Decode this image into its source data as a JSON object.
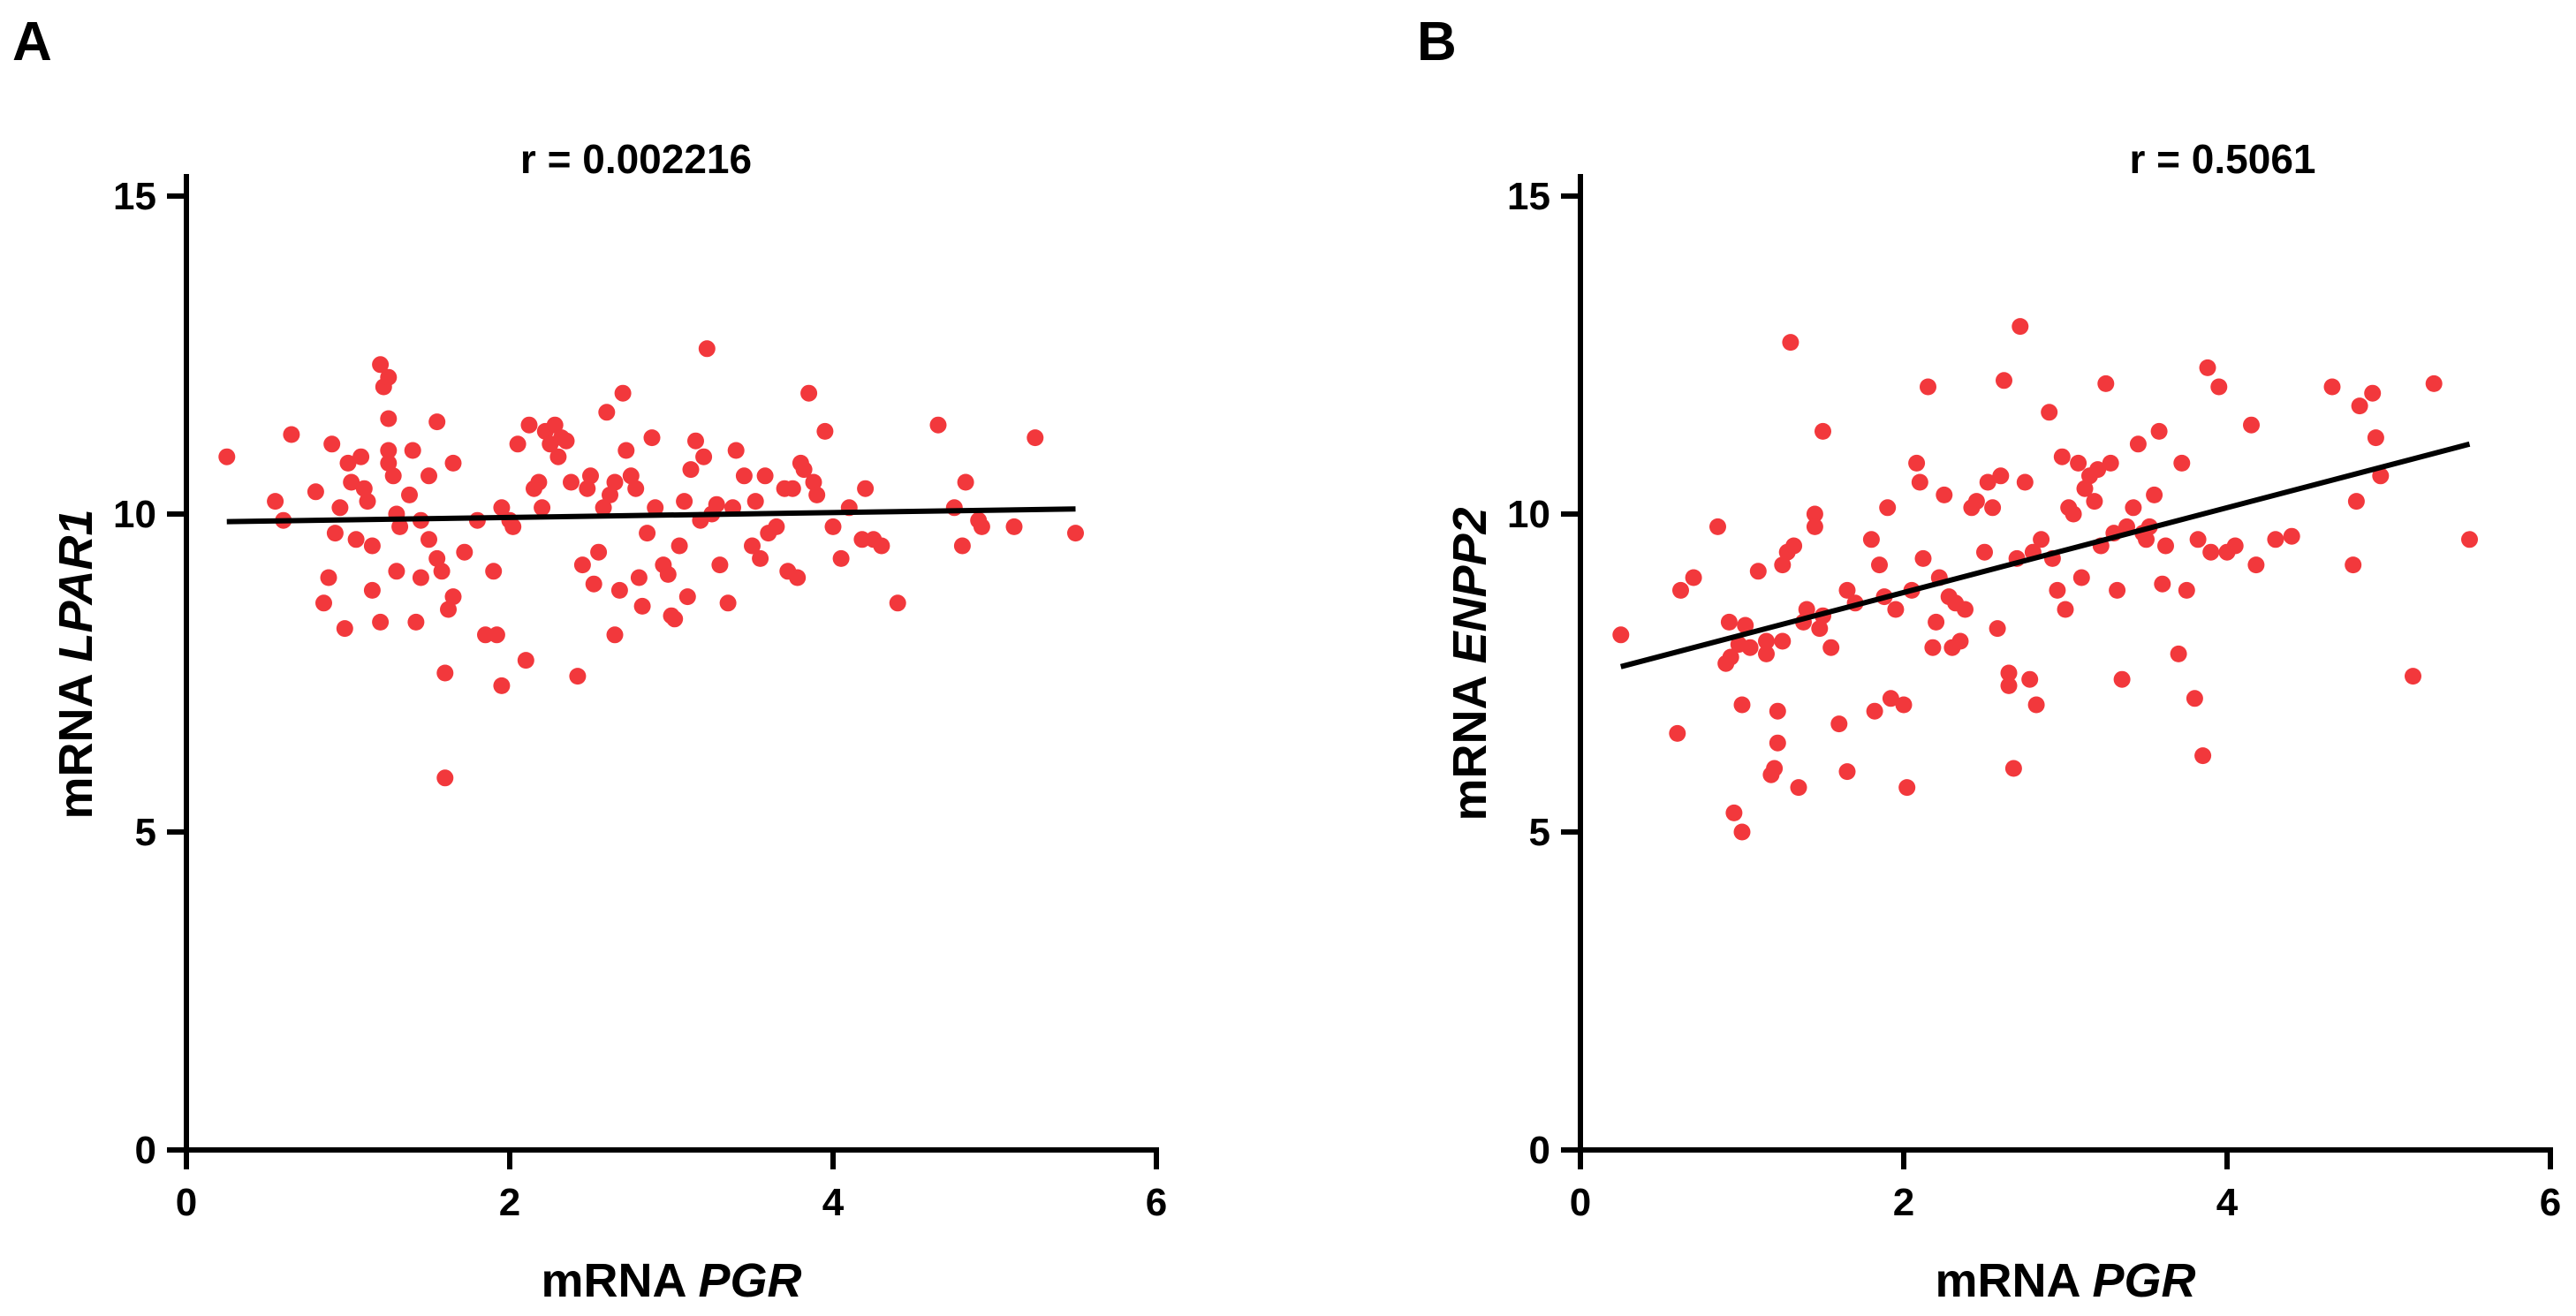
{
  "colors": {
    "point": "#f2383c",
    "axis": "#000000",
    "fit": "#000000"
  },
  "chart_data": [
    {
      "type": "scatter",
      "panel_label": "A",
      "title": "r = 0.002216",
      "xlabel_prefix": "mRNA ",
      "xlabel_gene": "PGR",
      "ylabel_prefix": "mRNA ",
      "ylabel_gene": "LPAR1",
      "xlim": [
        0,
        6
      ],
      "ylim": [
        0,
        15
      ],
      "xticks": [
        0,
        2,
        4,
        6
      ],
      "yticks": [
        0,
        5,
        10,
        15
      ],
      "grid": false,
      "legend": "none",
      "fit_line": {
        "x": [
          0.25,
          5.5
        ],
        "y": [
          9.88,
          10.08
        ]
      },
      "points": [
        [
          0.25,
          10.9
        ],
        [
          0.55,
          10.2
        ],
        [
          0.6,
          9.9
        ],
        [
          0.65,
          11.25
        ],
        [
          0.8,
          10.35
        ],
        [
          0.85,
          8.6
        ],
        [
          0.88,
          9.0
        ],
        [
          0.9,
          11.1
        ],
        [
          0.92,
          9.7
        ],
        [
          0.95,
          10.1
        ],
        [
          0.98,
          8.2
        ],
        [
          1.0,
          10.8
        ],
        [
          1.02,
          10.5
        ],
        [
          1.05,
          9.6
        ],
        [
          1.08,
          10.9
        ],
        [
          1.1,
          10.4
        ],
        [
          1.12,
          10.2
        ],
        [
          1.15,
          8.8
        ],
        [
          1.15,
          9.5
        ],
        [
          1.2,
          8.3
        ],
        [
          1.2,
          12.35
        ],
        [
          1.22,
          12.0
        ],
        [
          1.25,
          12.15
        ],
        [
          1.25,
          11.5
        ],
        [
          1.25,
          11.0
        ],
        [
          1.25,
          10.8
        ],
        [
          1.28,
          10.6
        ],
        [
          1.3,
          10.0
        ],
        [
          1.3,
          9.1
        ],
        [
          1.32,
          9.8
        ],
        [
          1.38,
          10.3
        ],
        [
          1.4,
          11.0
        ],
        [
          1.42,
          8.3
        ],
        [
          1.45,
          9.0
        ],
        [
          1.45,
          9.9
        ],
        [
          1.5,
          9.6
        ],
        [
          1.5,
          10.6
        ],
        [
          1.55,
          11.45
        ],
        [
          1.55,
          9.3
        ],
        [
          1.58,
          9.1
        ],
        [
          1.6,
          7.5
        ],
        [
          1.6,
          5.85
        ],
        [
          1.62,
          8.5
        ],
        [
          1.65,
          8.7
        ],
        [
          1.65,
          10.8
        ],
        [
          1.72,
          9.4
        ],
        [
          1.8,
          9.9
        ],
        [
          1.85,
          8.1
        ],
        [
          1.9,
          9.1
        ],
        [
          1.92,
          8.1
        ],
        [
          1.95,
          7.3
        ],
        [
          1.95,
          10.1
        ],
        [
          2.0,
          9.9
        ],
        [
          2.02,
          9.8
        ],
        [
          2.05,
          11.1
        ],
        [
          2.1,
          7.7
        ],
        [
          2.12,
          11.4
        ],
        [
          2.15,
          10.4
        ],
        [
          2.18,
          10.5
        ],
        [
          2.2,
          10.1
        ],
        [
          2.22,
          11.3
        ],
        [
          2.25,
          11.1
        ],
        [
          2.28,
          11.4
        ],
        [
          2.3,
          10.9
        ],
        [
          2.32,
          11.2
        ],
        [
          2.35,
          11.15
        ],
        [
          2.38,
          10.5
        ],
        [
          2.42,
          7.45
        ],
        [
          2.45,
          9.2
        ],
        [
          2.48,
          10.4
        ],
        [
          2.5,
          10.6
        ],
        [
          2.52,
          8.9
        ],
        [
          2.55,
          9.4
        ],
        [
          2.58,
          10.1
        ],
        [
          2.6,
          11.6
        ],
        [
          2.62,
          10.3
        ],
        [
          2.65,
          10.5
        ],
        [
          2.65,
          8.1
        ],
        [
          2.68,
          8.8
        ],
        [
          2.7,
          11.9
        ],
        [
          2.72,
          11.0
        ],
        [
          2.75,
          10.6
        ],
        [
          2.78,
          10.4
        ],
        [
          2.8,
          9.0
        ],
        [
          2.82,
          8.55
        ],
        [
          2.85,
          9.7
        ],
        [
          2.88,
          11.2
        ],
        [
          2.9,
          10.1
        ],
        [
          2.95,
          9.2
        ],
        [
          2.98,
          9.05
        ],
        [
          3.0,
          8.4
        ],
        [
          3.02,
          8.35
        ],
        [
          3.05,
          9.5
        ],
        [
          3.08,
          10.2
        ],
        [
          3.1,
          8.7
        ],
        [
          3.12,
          10.7
        ],
        [
          3.15,
          11.15
        ],
        [
          3.18,
          9.9
        ],
        [
          3.2,
          10.9
        ],
        [
          3.22,
          12.6
        ],
        [
          3.25,
          10.0
        ],
        [
          3.28,
          10.15
        ],
        [
          3.3,
          9.2
        ],
        [
          3.35,
          8.6
        ],
        [
          3.38,
          10.1
        ],
        [
          3.4,
          11.0
        ],
        [
          3.45,
          10.6
        ],
        [
          3.5,
          9.5
        ],
        [
          3.52,
          10.2
        ],
        [
          3.55,
          9.3
        ],
        [
          3.58,
          10.6
        ],
        [
          3.6,
          9.7
        ],
        [
          3.65,
          9.8
        ],
        [
          3.7,
          10.4
        ],
        [
          3.72,
          9.1
        ],
        [
          3.75,
          10.4
        ],
        [
          3.78,
          9.0
        ],
        [
          3.8,
          10.8
        ],
        [
          3.82,
          10.7
        ],
        [
          3.85,
          11.9
        ],
        [
          3.88,
          10.5
        ],
        [
          3.9,
          10.3
        ],
        [
          3.95,
          11.3
        ],
        [
          4.0,
          9.8
        ],
        [
          4.05,
          9.3
        ],
        [
          4.1,
          10.1
        ],
        [
          4.18,
          9.6
        ],
        [
          4.2,
          10.4
        ],
        [
          4.25,
          9.6
        ],
        [
          4.3,
          9.5
        ],
        [
          4.4,
          8.6
        ],
        [
          4.65,
          11.4
        ],
        [
          4.75,
          10.1
        ],
        [
          4.8,
          9.5
        ],
        [
          4.82,
          10.5
        ],
        [
          4.9,
          9.9
        ],
        [
          4.92,
          9.8
        ],
        [
          5.12,
          9.8
        ],
        [
          5.25,
          11.2
        ],
        [
          5.5,
          9.7
        ]
      ]
    },
    {
      "type": "scatter",
      "panel_label": "B",
      "title": "r =  0.5061",
      "xlabel_prefix": "mRNA ",
      "xlabel_gene": "PGR",
      "ylabel_prefix": "mRNA ",
      "ylabel_gene": "ENPP2",
      "xlim": [
        0,
        6
      ],
      "ylim": [
        0,
        15
      ],
      "xticks": [
        0,
        2,
        4,
        6
      ],
      "yticks": [
        0,
        5,
        10,
        15
      ],
      "grid": false,
      "legend": "none",
      "fit_line": {
        "x": [
          0.25,
          5.5
        ],
        "y": [
          7.6,
          11.1
        ]
      },
      "points": [
        [
          0.25,
          8.1
        ],
        [
          0.6,
          6.55
        ],
        [
          0.62,
          8.8
        ],
        [
          0.7,
          9.0
        ],
        [
          0.85,
          9.8
        ],
        [
          0.9,
          7.65
        ],
        [
          0.92,
          8.3
        ],
        [
          0.93,
          7.75
        ],
        [
          0.95,
          5.3
        ],
        [
          0.98,
          7.95
        ],
        [
          1.0,
          5.0
        ],
        [
          1.0,
          7.0
        ],
        [
          1.02,
          8.25
        ],
        [
          1.05,
          7.9
        ],
        [
          1.1,
          9.1
        ],
        [
          1.15,
          8.0
        ],
        [
          1.15,
          7.8
        ],
        [
          1.18,
          5.9
        ],
        [
          1.2,
          6.0
        ],
        [
          1.22,
          6.4
        ],
        [
          1.22,
          6.9
        ],
        [
          1.25,
          8.0
        ],
        [
          1.25,
          9.2
        ],
        [
          1.28,
          9.4
        ],
        [
          1.3,
          12.7
        ],
        [
          1.32,
          9.5
        ],
        [
          1.35,
          5.7
        ],
        [
          1.38,
          8.3
        ],
        [
          1.4,
          8.5
        ],
        [
          1.45,
          10.0
        ],
        [
          1.45,
          9.8
        ],
        [
          1.48,
          8.2
        ],
        [
          1.5,
          8.4
        ],
        [
          1.5,
          11.3
        ],
        [
          1.55,
          7.9
        ],
        [
          1.6,
          6.7
        ],
        [
          1.65,
          5.95
        ],
        [
          1.65,
          8.8
        ],
        [
          1.7,
          8.6
        ],
        [
          1.8,
          9.6
        ],
        [
          1.82,
          6.9
        ],
        [
          1.85,
          9.2
        ],
        [
          1.88,
          8.7
        ],
        [
          1.9,
          10.1
        ],
        [
          1.92,
          7.1
        ],
        [
          1.95,
          8.5
        ],
        [
          2.0,
          7.0
        ],
        [
          2.02,
          5.7
        ],
        [
          2.05,
          8.8
        ],
        [
          2.08,
          10.8
        ],
        [
          2.1,
          10.5
        ],
        [
          2.12,
          9.3
        ],
        [
          2.15,
          12.0
        ],
        [
          2.18,
          7.9
        ],
        [
          2.2,
          8.3
        ],
        [
          2.22,
          9.0
        ],
        [
          2.25,
          10.3
        ],
        [
          2.28,
          8.7
        ],
        [
          2.3,
          7.9
        ],
        [
          2.32,
          8.6
        ],
        [
          2.35,
          8.0
        ],
        [
          2.38,
          8.5
        ],
        [
          2.42,
          10.1
        ],
        [
          2.45,
          10.2
        ],
        [
          2.5,
          9.4
        ],
        [
          2.52,
          10.5
        ],
        [
          2.55,
          10.1
        ],
        [
          2.58,
          8.2
        ],
        [
          2.6,
          10.6
        ],
        [
          2.62,
          12.1
        ],
        [
          2.65,
          7.5
        ],
        [
          2.65,
          7.3
        ],
        [
          2.68,
          6.0
        ],
        [
          2.7,
          9.3
        ],
        [
          2.72,
          12.95
        ],
        [
          2.75,
          10.5
        ],
        [
          2.78,
          7.4
        ],
        [
          2.8,
          9.4
        ],
        [
          2.82,
          7.0
        ],
        [
          2.85,
          9.6
        ],
        [
          2.9,
          11.6
        ],
        [
          2.92,
          9.3
        ],
        [
          2.95,
          8.8
        ],
        [
          2.98,
          10.9
        ],
        [
          3.0,
          8.5
        ],
        [
          3.02,
          10.1
        ],
        [
          3.05,
          10.0
        ],
        [
          3.08,
          10.8
        ],
        [
          3.1,
          9.0
        ],
        [
          3.12,
          10.4
        ],
        [
          3.15,
          10.6
        ],
        [
          3.18,
          10.2
        ],
        [
          3.2,
          10.7
        ],
        [
          3.22,
          9.5
        ],
        [
          3.25,
          12.05
        ],
        [
          3.28,
          10.8
        ],
        [
          3.3,
          9.7
        ],
        [
          3.32,
          8.8
        ],
        [
          3.35,
          7.4
        ],
        [
          3.38,
          9.8
        ],
        [
          3.42,
          10.1
        ],
        [
          3.45,
          11.1
        ],
        [
          3.48,
          9.7
        ],
        [
          3.5,
          9.6
        ],
        [
          3.52,
          9.8
        ],
        [
          3.55,
          10.3
        ],
        [
          3.58,
          11.3
        ],
        [
          3.6,
          8.9
        ],
        [
          3.62,
          9.5
        ],
        [
          3.7,
          7.8
        ],
        [
          3.72,
          10.8
        ],
        [
          3.75,
          8.8
        ],
        [
          3.8,
          7.1
        ],
        [
          3.82,
          9.6
        ],
        [
          3.85,
          6.2
        ],
        [
          3.88,
          12.3
        ],
        [
          3.9,
          9.4
        ],
        [
          3.95,
          12.0
        ],
        [
          4.0,
          9.4
        ],
        [
          4.05,
          9.5
        ],
        [
          4.15,
          11.4
        ],
        [
          4.18,
          9.2
        ],
        [
          4.3,
          9.6
        ],
        [
          4.4,
          9.65
        ],
        [
          4.65,
          12.0
        ],
        [
          4.78,
          9.2
        ],
        [
          4.8,
          10.2
        ],
        [
          4.82,
          11.7
        ],
        [
          4.9,
          11.9
        ],
        [
          4.92,
          11.2
        ],
        [
          4.95,
          10.6
        ],
        [
          5.15,
          7.45
        ],
        [
          5.28,
          12.05
        ],
        [
          5.5,
          9.6
        ]
      ]
    }
  ]
}
